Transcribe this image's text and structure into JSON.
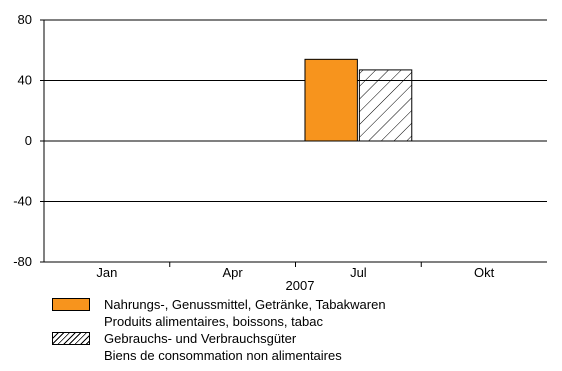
{
  "chart_data": {
    "type": "bar",
    "year_label": "2007",
    "ylim": [
      -80,
      80
    ],
    "y_ticks": [
      "80",
      "40",
      "0",
      "-40",
      "-80"
    ],
    "y_tick_values": [
      80,
      40,
      0,
      -40,
      -80
    ],
    "x_range_months": [
      0,
      12
    ],
    "x_tick_labels": [
      {
        "month": 1,
        "label": "Jan"
      },
      {
        "month": 4,
        "label": "Apr"
      },
      {
        "month": 7,
        "label": "Jul"
      },
      {
        "month": 10,
        "label": "Okt"
      }
    ],
    "grid": true,
    "legend_position": "bottom",
    "series": [
      {
        "name": "Nahrungs-, Genussmittel, Getränke, Tabakwaren",
        "name_fr": "Produits alimentaires, boissons, tabac",
        "style": "solid",
        "color": "#f7941d",
        "points": [
          {
            "month": 7,
            "value": 54
          }
        ]
      },
      {
        "name": "Gebrauchs- und Verbrauchsgüter",
        "name_fr": "Biens de consommation non alimentaires",
        "style": "hatched",
        "color": "#000000",
        "points": [
          {
            "month": 7,
            "value": 47
          }
        ]
      }
    ]
  }
}
